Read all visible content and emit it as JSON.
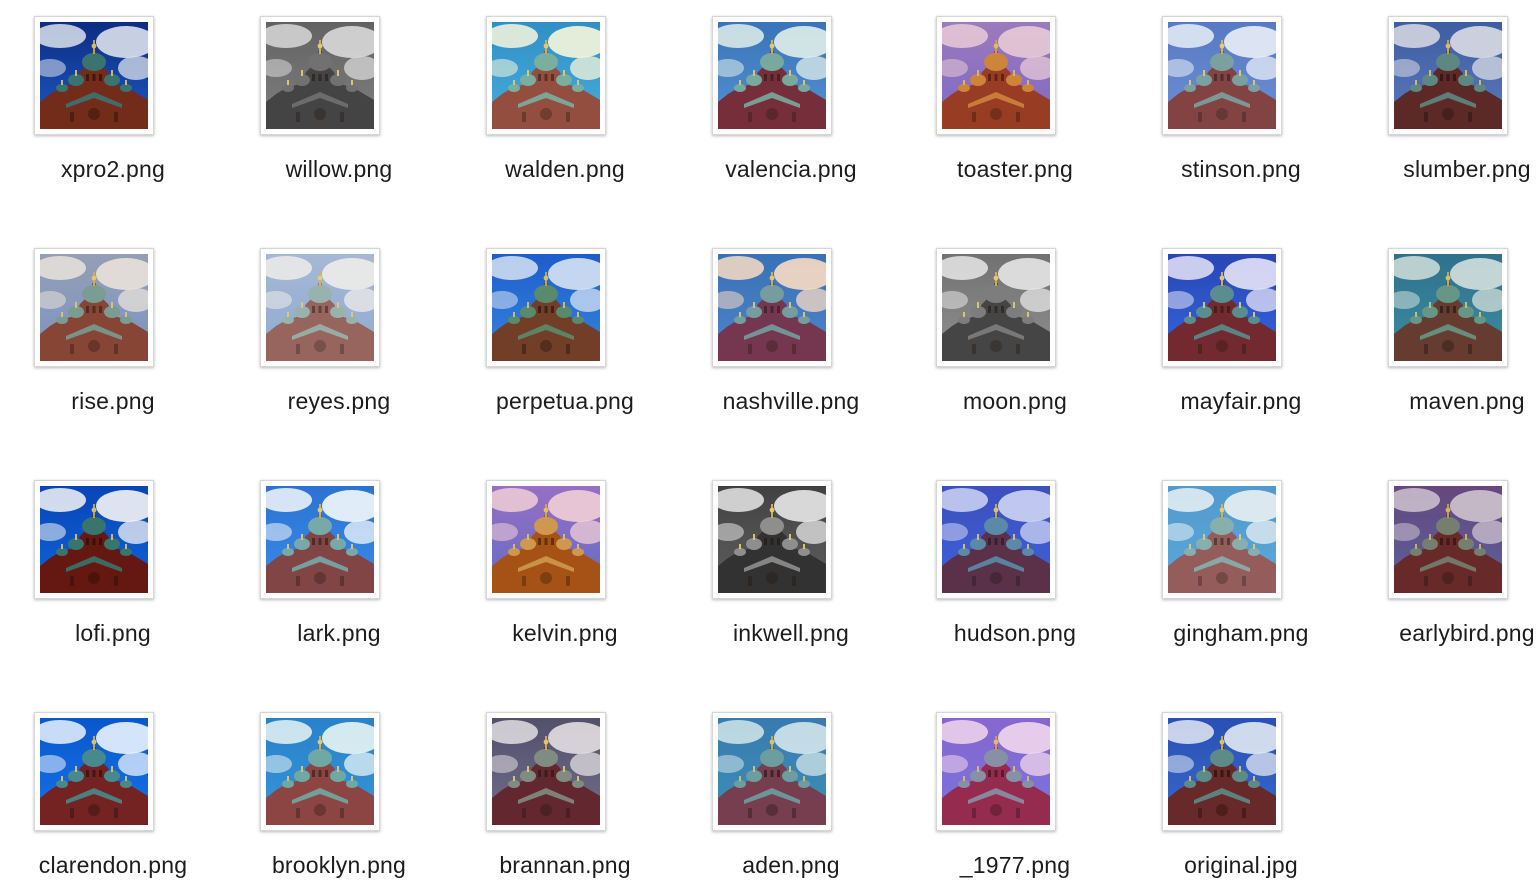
{
  "files": [
    {
      "name": "xpro2.png",
      "filter": {
        "sky": "#1f5fd0",
        "skyTop": "#0e2f8a",
        "cloud": "#e8eef8",
        "building": "#7a2f1c",
        "dome": "#3f7a78",
        "tint": "#000000",
        "tintOpacity": 0.05
      }
    },
    {
      "name": "willow.png",
      "filter": {
        "sky": "#7a7a7a",
        "skyTop": "#5a5a5a",
        "cloud": "#d8d8d8",
        "building": "#3a3a3a",
        "dome": "#6a6a6a",
        "tint": "#ffffff",
        "tintOpacity": 0.05
      }
    },
    {
      "name": "walden.png",
      "filter": {
        "sky": "#3aa7e6",
        "skyTop": "#1f86cf",
        "cloud": "#f6f7e6",
        "building": "#8a3f3c",
        "dome": "#6fa8a4",
        "tint": "#ffff66",
        "tintOpacity": 0.08
      }
    },
    {
      "name": "valencia.png",
      "filter": {
        "sky": "#4b8ed2",
        "skyTop": "#2d6cb8",
        "cloud": "#dff0ec",
        "building": "#6e2332",
        "dome": "#6fa59c",
        "tint": "#ffeecc",
        "tintOpacity": 0.06
      }
    },
    {
      "name": "toaster.png",
      "filter": {
        "sky": "#6a6ae0",
        "skyTop": "#8f7fd8",
        "cloud": "#e6d9f4",
        "building": "#8a3a2a",
        "dome": "#c88a44",
        "tint": "#ff5a00",
        "tintOpacity": 0.12
      }
    },
    {
      "name": "stinson.png",
      "filter": {
        "sky": "#5f86cf",
        "skyTop": "#4a6fc0",
        "cloud": "#e9eef8",
        "building": "#7a3434",
        "dome": "#6f9a98",
        "tint": "#ffffff",
        "tintOpacity": 0.08
      }
    },
    {
      "name": "slumber.png",
      "filter": {
        "sky": "#5d7fc6",
        "skyTop": "#3f61ad",
        "cloud": "#e4e8f2",
        "building": "#5f2a2a",
        "dome": "#5f8e8a",
        "tint": "#442200",
        "tintOpacity": 0.06
      }
    },
    {
      "name": "rise.png",
      "filter": {
        "sky": "#6f8fc6",
        "skyTop": "#8c9bb8",
        "cloud": "#e8e4e0",
        "building": "#7d3a2e",
        "dome": "#6f9892",
        "tint": "#ffcc99",
        "tintOpacity": 0.08
      }
    },
    {
      "name": "reyes.png",
      "filter": {
        "sky": "#7fa0cf",
        "skyTop": "#9aaecf",
        "cloud": "#eceae6",
        "building": "#8a5048",
        "dome": "#8aa8a2",
        "tint": "#ffffff",
        "tintOpacity": 0.12
      }
    },
    {
      "name": "perpetua.png",
      "filter": {
        "sky": "#3a8ae0",
        "skyTop": "#1f5fcf",
        "cloud": "#e2ecf8",
        "building": "#7a3f22",
        "dome": "#5f8f6a",
        "tint": "#003399",
        "tintOpacity": 0.05
      }
    },
    {
      "name": "nashville.png",
      "filter": {
        "sky": "#3f7fd0",
        "skyTop": "#2a6ab8",
        "cloud": "#f8ddc8",
        "building": "#6a2a4a",
        "dome": "#6a9aa0",
        "tint": "#ffcc99",
        "tintOpacity": 0.08
      }
    },
    {
      "name": "moon.png",
      "filter": {
        "sky": "#8a8a8a",
        "skyTop": "#6a6a6a",
        "cloud": "#e6e6e6",
        "building": "#3c3c3c",
        "dome": "#777777",
        "tint": "#ffffff",
        "tintOpacity": 0.05
      }
    },
    {
      "name": "mayfair.png",
      "filter": {
        "sky": "#2a5fdc",
        "skyTop": "#1a3fb0",
        "cloud": "#e6e6f8",
        "building": "#6a1f22",
        "dome": "#4f8a8a",
        "tint": "#ffccff",
        "tintOpacity": 0.06
      }
    },
    {
      "name": "maven.png",
      "filter": {
        "sky": "#3f8fa8",
        "skyTop": "#2f7290",
        "cloud": "#dde8e4",
        "building": "#6a3a2e",
        "dome": "#6a9a8a",
        "tint": "#336655",
        "tintOpacity": 0.06
      }
    },
    {
      "name": "lofi.png",
      "filter": {
        "sky": "#0f6ae0",
        "skyTop": "#0a48c0",
        "cloud": "#ffffff",
        "building": "#6a1a12",
        "dome": "#3a7a72",
        "tint": "#000000",
        "tintOpacity": 0.04
      }
    },
    {
      "name": "lark.png",
      "filter": {
        "sky": "#2f86e6",
        "skyTop": "#1f6ad0",
        "cloud": "#f4f8fb",
        "building": "#7a3a3a",
        "dome": "#6fa4a4",
        "tint": "#ffffff",
        "tintOpacity": 0.06
      }
    },
    {
      "name": "kelvin.png",
      "filter": {
        "sky": "#4a6ae0",
        "skyTop": "#8a6ae0",
        "cloud": "#f0d8f4",
        "building": "#9a4a1a",
        "dome": "#c89a5a",
        "tint": "#ff8800",
        "tintOpacity": 0.12
      }
    },
    {
      "name": "inkwell.png",
      "filter": {
        "sky": "#5a5a5a",
        "skyTop": "#3a3a3a",
        "cloud": "#e8e8e8",
        "building": "#2a2a2a",
        "dome": "#8a8a8a",
        "tint": "#ffffff",
        "tintOpacity": 0.04
      }
    },
    {
      "name": "hudson.png",
      "filter": {
        "sky": "#3a5fd8",
        "skyTop": "#3a4ab8",
        "cloud": "#d8dcf4",
        "building": "#5a2a3a",
        "dome": "#5a8aa0",
        "tint": "#6688ff",
        "tintOpacity": 0.08
      }
    },
    {
      "name": "gingham.png",
      "filter": {
        "sky": "#4aa0d8",
        "skyTop": "#3f8ec8",
        "cloud": "#e8f0f2",
        "building": "#8a4a4a",
        "dome": "#7aa8a4",
        "tint": "#ffffff",
        "tintOpacity": 0.1
      }
    },
    {
      "name": "earlybird.png",
      "filter": {
        "sky": "#5a6ab0",
        "skyTop": "#6a4a8a",
        "cloud": "#e0d8e8",
        "building": "#6a2a2a",
        "dome": "#7a8a7a",
        "tint": "#553322",
        "tintOpacity": 0.12
      }
    },
    {
      "name": "clarendon.png",
      "filter": {
        "sky": "#1a72e6",
        "skyTop": "#0a56cc",
        "cloud": "#f4f8ff",
        "building": "#7a1f1a",
        "dome": "#4a8a88",
        "tint": "#0088ff",
        "tintOpacity": 0.04
      }
    },
    {
      "name": "brooklyn.png",
      "filter": {
        "sky": "#2f8fd8",
        "skyTop": "#1f7ac8",
        "cloud": "#eaf4f6",
        "building": "#8a3a3a",
        "dome": "#6aa4a0",
        "tint": "#ccffee",
        "tintOpacity": 0.06
      }
    },
    {
      "name": "brannan.png",
      "filter": {
        "sky": "#6a6a8a",
        "skyTop": "#4a4a6a",
        "cloud": "#e2e0e6",
        "building": "#5a1f2a",
        "dome": "#7a8a80",
        "tint": "#ffcc99",
        "tintOpacity": 0.05
      }
    },
    {
      "name": "aden.png",
      "filter": {
        "sky": "#3a90b8",
        "skyTop": "#3a7ab0",
        "cloud": "#dcecef",
        "building": "#7a3a4a",
        "dome": "#6fa0a0",
        "tint": "#4488aa",
        "tintOpacity": 0.06
      }
    },
    {
      "name": "_1977.png",
      "filter": {
        "sky": "#6a7ae6",
        "skyTop": "#7a6ad8",
        "cloud": "#f0e8f8",
        "building": "#8a2a4a",
        "dome": "#7a9aaa",
        "tint": "#ff4488",
        "tintOpacity": 0.1
      }
    },
    {
      "name": "original.jpg",
      "filter": {
        "sky": "#3a6ad0",
        "skyTop": "#2a52b8",
        "cloud": "#e8eef8",
        "building": "#6a2a2a",
        "dome": "#5f8e8a",
        "tint": "#000000",
        "tintOpacity": 0.02
      }
    }
  ],
  "layout": {
    "columns": 7
  }
}
